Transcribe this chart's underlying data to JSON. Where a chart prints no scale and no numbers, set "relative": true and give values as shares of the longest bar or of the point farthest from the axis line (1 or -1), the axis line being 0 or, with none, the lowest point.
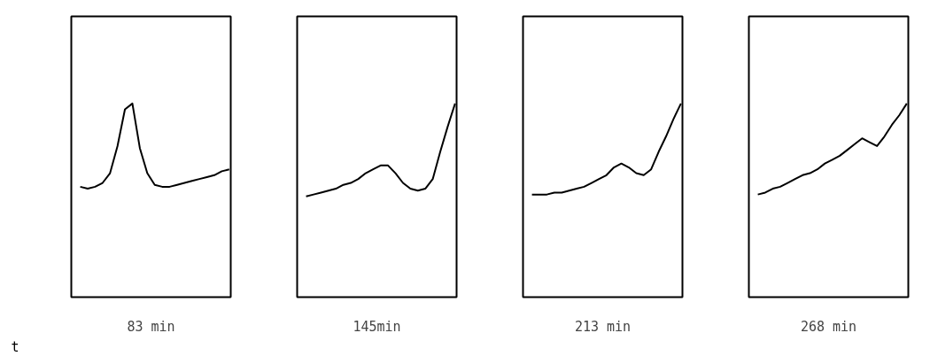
{
  "chart_data": [
    {
      "type": "line",
      "relative": true,
      "xlabel": "83 min",
      "annotations": [
        "t"
      ],
      "categories": [
        null,
        null,
        null,
        null,
        null,
        null,
        null,
        null,
        null,
        null,
        null,
        null,
        null,
        null,
        null,
        null,
        null,
        null,
        null,
        null,
        null
      ],
      "series": [
        {
          "color": "#000000",
          "values": [
            0.57,
            0.56,
            0.57,
            0.59,
            0.64,
            0.78,
            0.97,
            1,
            0.77,
            0.64,
            0.58,
            0.57,
            0.57,
            0.58,
            0.59,
            0.6,
            0.61,
            0.62,
            0.63,
            0.65,
            0.66
          ]
        }
      ],
      "grid": false
    },
    {
      "type": "line",
      "relative": true,
      "xlabel": "145min",
      "categories": [
        null,
        null,
        null,
        null,
        null,
        null,
        null,
        null,
        null,
        null,
        null,
        null,
        null,
        null,
        null,
        null,
        null,
        null,
        null,
        null,
        null
      ],
      "series": [
        {
          "color": "#000000",
          "values": [
            0.52,
            0.53,
            0.54,
            0.55,
            0.56,
            0.58,
            0.59,
            0.61,
            0.64,
            0.66,
            0.68,
            0.68,
            0.64,
            0.59,
            0.56,
            0.55,
            0.56,
            0.61,
            0.75,
            0.88,
            1
          ]
        }
      ],
      "grid": false
    },
    {
      "type": "line",
      "relative": true,
      "xlabel": "213 min",
      "categories": [
        null,
        null,
        null,
        null,
        null,
        null,
        null,
        null,
        null,
        null,
        null,
        null,
        null,
        null,
        null,
        null,
        null,
        null,
        null,
        null,
        null
      ],
      "series": [
        {
          "color": "#000000",
          "values": [
            0.53,
            0.53,
            0.53,
            0.54,
            0.54,
            0.55,
            0.56,
            0.57,
            0.59,
            0.61,
            0.63,
            0.67,
            0.69,
            0.67,
            0.64,
            0.63,
            0.66,
            0.75,
            0.83,
            0.92,
            1
          ]
        }
      ],
      "grid": false
    },
    {
      "type": "line",
      "relative": true,
      "xlabel": "268 min",
      "categories": [
        null,
        null,
        null,
        null,
        null,
        null,
        null,
        null,
        null,
        null,
        null,
        null,
        null,
        null,
        null,
        null,
        null,
        null,
        null,
        null,
        null
      ],
      "series": [
        {
          "color": "#000000",
          "values": [
            0.53,
            0.54,
            0.56,
            0.57,
            0.59,
            0.61,
            0.63,
            0.64,
            0.66,
            0.69,
            0.71,
            0.73,
            0.76,
            0.79,
            0.82,
            0.8,
            0.78,
            0.83,
            0.89,
            0.94,
            1
          ]
        }
      ],
      "grid": false
    }
  ]
}
